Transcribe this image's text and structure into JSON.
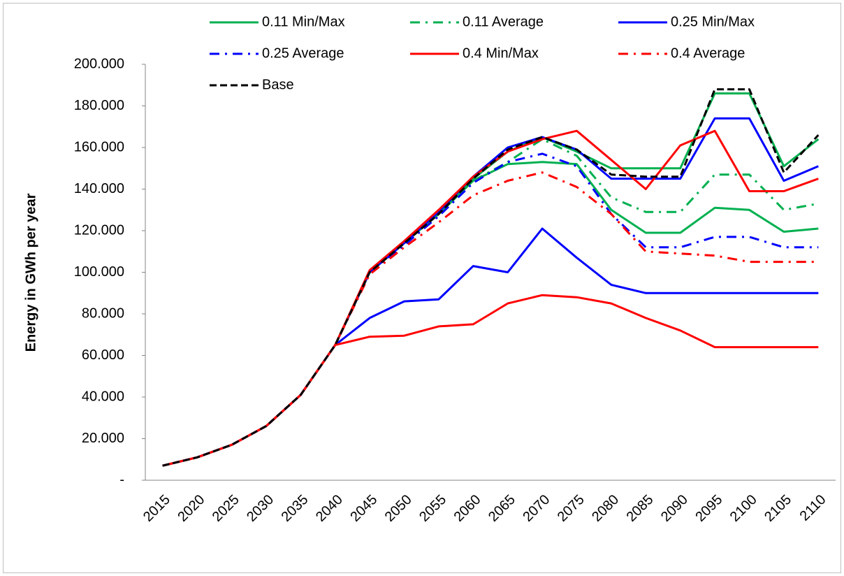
{
  "chart_data": {
    "type": "line",
    "y_label": "Energy in GWh per year",
    "categories": [
      "2015",
      "2020",
      "2025",
      "2030",
      "2035",
      "2040",
      "2045",
      "2050",
      "2055",
      "2060",
      "2065",
      "2070",
      "2075",
      "2080",
      "2085",
      "2090",
      "2095",
      "2100",
      "2105",
      "2110"
    ],
    "ylim": [
      0,
      200000
    ],
    "yticks": [
      {
        "value": 0,
        "label": "-"
      },
      {
        "value": 20000,
        "label": "20.000"
      },
      {
        "value": 40000,
        "label": "40.000"
      },
      {
        "value": 60000,
        "label": "60.000"
      },
      {
        "value": 80000,
        "label": "80.000"
      },
      {
        "value": 100000,
        "label": "100.000"
      },
      {
        "value": 120000,
        "label": "120.000"
      },
      {
        "value": 140000,
        "label": "140.000"
      },
      {
        "value": 160000,
        "label": "160.000"
      },
      {
        "value": 180000,
        "label": "180.000"
      },
      {
        "value": 200000,
        "label": "200.000"
      }
    ],
    "grid": false,
    "legend": "top",
    "series": [
      {
        "name": "0.11 Min/Max",
        "color": "#00b050",
        "style": "solid",
        "min": [
          7000,
          11000,
          17000,
          26000,
          41000,
          65000,
          100000,
          114000,
          128000,
          144000,
          152000,
          153000,
          152000,
          130000,
          119000,
          119000,
          131000,
          130000,
          119500,
          121000
        ],
        "max": [
          7000,
          11000,
          17000,
          26000,
          41000,
          65000,
          100000,
          114000,
          129000,
          145000,
          158000,
          165000,
          158000,
          150000,
          150000,
          150000,
          186000,
          186000,
          151000,
          164000
        ]
      },
      {
        "name": "0.11 Average",
        "color": "#00b050",
        "style": "dashdot",
        "values": [
          7000,
          11000,
          17000,
          26000,
          41000,
          65000,
          100000,
          114000,
          128000,
          144000,
          153000,
          164000,
          156000,
          136000,
          129000,
          129000,
          147000,
          147000,
          130000,
          133000
        ]
      },
      {
        "name": "0.25 Min/Max",
        "color": "#0000ff",
        "style": "solid",
        "min": [
          7000,
          11000,
          17000,
          26000,
          41000,
          65000,
          78000,
          86000,
          87000,
          103000,
          100000,
          121000,
          107000,
          94000,
          90000,
          90000,
          90000,
          90000,
          90000,
          90000
        ],
        "max": [
          7000,
          11000,
          17000,
          26000,
          41000,
          65000,
          100000,
          114000,
          129000,
          146000,
          160000,
          165000,
          159000,
          145000,
          145000,
          145000,
          174000,
          174000,
          144000,
          151000
        ]
      },
      {
        "name": "0.25 Average",
        "color": "#0000ff",
        "style": "dashdot",
        "values": [
          7000,
          11000,
          17000,
          26000,
          41000,
          65000,
          100000,
          113000,
          127000,
          143000,
          153000,
          157000,
          151000,
          128000,
          112000,
          112000,
          117000,
          117000,
          112000,
          112000
        ]
      },
      {
        "name": "0.4 Min/Max",
        "color": "#ff0000",
        "style": "solid",
        "min": [
          7000,
          11000,
          17000,
          26000,
          41000,
          65000,
          69000,
          69500,
          74000,
          75000,
          85000,
          89000,
          88000,
          85000,
          78000,
          72000,
          64000,
          64000,
          64000,
          64000
        ],
        "max": [
          7000,
          11000,
          17000,
          26000,
          41000,
          65000,
          101000,
          115000,
          130000,
          146000,
          158000,
          164000,
          168000,
          154000,
          140000,
          161000,
          168000,
          139000,
          139000,
          145000
        ]
      },
      {
        "name": "0.4 Average",
        "color": "#ff0000",
        "style": "dashdot",
        "values": [
          7000,
          11000,
          17000,
          26000,
          41000,
          65000,
          99000,
          112000,
          124000,
          137000,
          144000,
          148000,
          141000,
          128000,
          110000,
          109000,
          108000,
          105000,
          105000,
          105000
        ]
      },
      {
        "name": "Base",
        "color": "#000000",
        "style": "dash",
        "values": [
          7000,
          11000,
          17000,
          26000,
          41000,
          65000,
          100000,
          114000,
          128000,
          145000,
          159000,
          165000,
          159000,
          147000,
          146000,
          146000,
          188000,
          188000,
          148000,
          166000
        ]
      }
    ]
  }
}
